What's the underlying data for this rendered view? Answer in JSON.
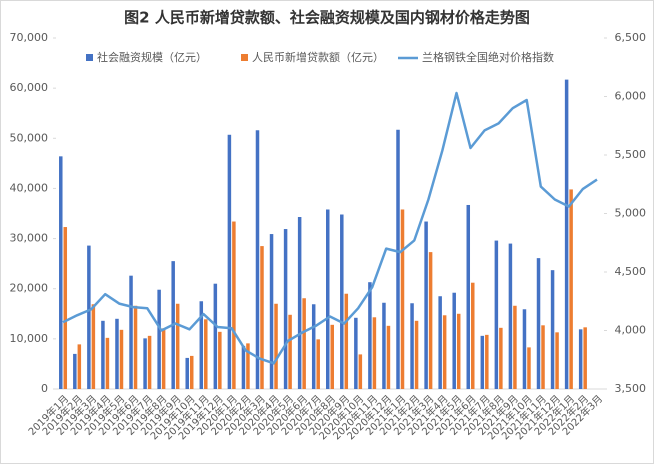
{
  "chart_data": {
    "type": "bar-line",
    "title": "图2 人民币新增贷款额、社会融资规模及国内钢材价格走势图",
    "categories": [
      "2019年1月",
      "2019年2月",
      "2019年3月",
      "2019年4月",
      "2019年5月",
      "2019年6月",
      "2019年7月",
      "2019年8月",
      "2019年9月",
      "2019年10月",
      "2019年11月",
      "2019年12月",
      "2020年1月",
      "2020年2月",
      "2020年3月",
      "2020年4月",
      "2020年5月",
      "2020年6月",
      "2020年7月",
      "2020年8月",
      "2020年9月",
      "2020年10月",
      "2020年11月",
      "2020年12月",
      "2021年1月",
      "2021年2月",
      "2021年3月",
      "2021年4月",
      "2021年5月",
      "2021年6月",
      "2021年7月",
      "2021年8月",
      "2021年9月",
      "2021年10月",
      "2021年11月",
      "2021年12月",
      "2022年1月",
      "2022年2月",
      "2022年3月"
    ],
    "series": [
      {
        "name": "社会融资规模（亿元）",
        "color": "#4472c4",
        "kind": "bar",
        "values": [
          46400,
          7000,
          28600,
          13600,
          14000,
          22600,
          10100,
          19800,
          25500,
          6200,
          17500,
          21000,
          50700,
          8600,
          51600,
          30900,
          31900,
          34300,
          16900,
          35800,
          34800,
          14200,
          21300,
          17200,
          51700,
          17100,
          33400,
          18500,
          19200,
          36700,
          10600,
          29600,
          29000,
          15900,
          26100,
          23700,
          61700,
          11900,
          null
        ]
      },
      {
        "name": "人民币新增贷款额（亿元）",
        "color": "#ed7d31",
        "kind": "bar",
        "values": [
          32300,
          8900,
          16900,
          10200,
          11800,
          16600,
          10600,
          12100,
          17000,
          6600,
          13900,
          11400,
          33400,
          9100,
          28500,
          17000,
          14800,
          18100,
          9900,
          12800,
          19000,
          6900,
          14300,
          12600,
          35800,
          13600,
          27300,
          14700,
          15000,
          21200,
          10800,
          12200,
          16600,
          8300,
          12700,
          11300,
          39800,
          12300,
          null
        ]
      },
      {
        "name": "兰格钢铁全国绝对价格指数",
        "color": "#5b9bd5",
        "kind": "line",
        "axis": "y2",
        "values": [
          4070,
          4130,
          4180,
          4310,
          4230,
          4200,
          4190,
          4000,
          4060,
          4010,
          4140,
          4030,
          4020,
          3830,
          3760,
          3720,
          3910,
          3980,
          4040,
          4120,
          4060,
          4190,
          4370,
          4700,
          4670,
          4770,
          5120,
          5540,
          6030,
          5560,
          5710,
          5770,
          5900,
          5970,
          5230,
          5120,
          5060,
          5210,
          5290
        ]
      }
    ],
    "ylim": [
      0,
      70000
    ],
    "yticks": [
      0,
      {
        "value": 10000,
        "label": "10,000"
      },
      {
        "value": 20000,
        "label": "20,000"
      },
      {
        "value": 30000,
        "label": "30,000"
      },
      {
        "value": 40000,
        "label": "40,000"
      },
      {
        "value": 50000,
        "label": "50,000"
      },
      {
        "value": 60000,
        "label": "60,000"
      },
      {
        "value": 70000,
        "label": "70,000"
      }
    ],
    "y2lim": [
      3500,
      6500
    ],
    "y2ticks": [
      {
        "value": 3500,
        "label": "3,500"
      },
      {
        "value": 4000,
        "label": "4,000"
      },
      {
        "value": 4500,
        "label": "4,500"
      },
      {
        "value": 5000,
        "label": "5,000"
      },
      {
        "value": 5500,
        "label": "5,500"
      },
      {
        "value": 6000,
        "label": "6,000"
      },
      {
        "value": 6500,
        "label": "6,500"
      }
    ],
    "legend": "top"
  }
}
